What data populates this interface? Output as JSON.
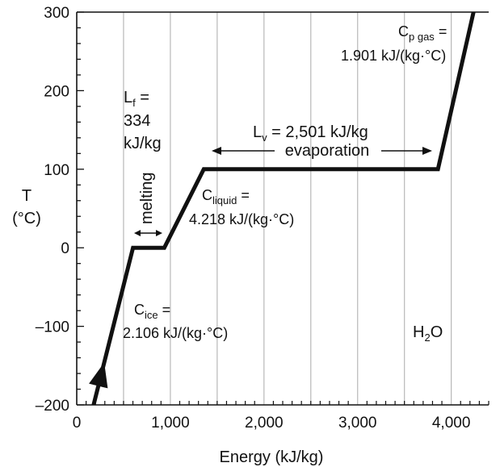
{
  "chart_data": {
    "type": "line",
    "xlabel": "Energy  (kJ/kg)",
    "ylabel_line1": "T",
    "ylabel_line2": "(°C)",
    "xlim": [
      0,
      4400
    ],
    "ylim": [
      -200,
      300
    ],
    "x_ticks": [
      0,
      1000,
      2000,
      3000,
      4000
    ],
    "x_tick_labels": [
      "0",
      "1,000",
      "2,000",
      "3,000",
      "4,000"
    ],
    "y_ticks": [
      -200,
      -100,
      0,
      100,
      200,
      300
    ],
    "y_tick_labels": [
      "–200",
      "–100",
      "0",
      "100",
      "200",
      "300"
    ],
    "x_grid_lines": [
      500,
      1000,
      1500,
      2000,
      2500,
      3000,
      3500,
      4000
    ],
    "y_minor_step": 20,
    "series": [
      {
        "x": [
          180,
          601,
          935,
          1357,
          3858,
          4238
        ],
        "y": [
          -200,
          0,
          0,
          100,
          100,
          300
        ]
      }
    ],
    "annotations": {
      "lf_main": "L",
      "lf_sub": "f",
      "lf_eq": " =",
      "lf_value": "334",
      "lf_unit": "kJ/kg",
      "melting": "melting",
      "lv_main": "L",
      "lv_sub": "v",
      "lv_value": " =  2,501 kJ/kg",
      "evaporation": "evaporation",
      "cliquid_main": "C",
      "cliquid_sub": "liquid",
      "cliquid_eq": " =",
      "cliquid_value": "4.218 kJ/(kg·°C)",
      "cice_main": "C",
      "cice_sub": "ice",
      "cice_eq": " =",
      "cice_value": "2.106 kJ/(kg·°C)",
      "cgas_main": "C",
      "cgas_sub": "p gas",
      "cgas_eq": " =",
      "cgas_value": "1.901 kJ/(kg·°C)",
      "h2o_main": "H",
      "h2o_sub": "2",
      "h2o_end": "O"
    }
  }
}
